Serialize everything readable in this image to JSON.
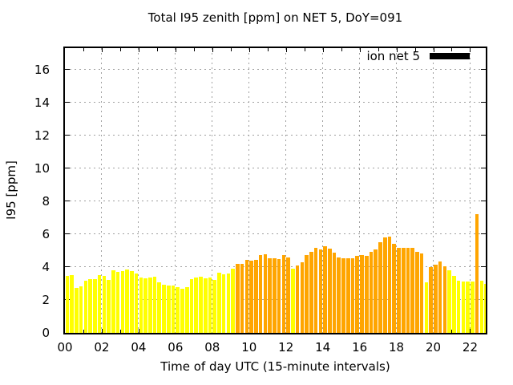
{
  "title": "Total I95 zenith [ppm] on NET 5, DoY=091",
  "legend": {
    "label": "ion net 5",
    "swatch_color": "#000000",
    "position": "top-right-inside"
  },
  "axes": {
    "x_label": "Time of day UTC (15-minute intervals)",
    "y_label": "I95 [ppm]",
    "x_tick_labels": [
      "00",
      "02",
      "04",
      "06",
      "08",
      "10",
      "12",
      "14",
      "16",
      "18",
      "20",
      "22"
    ],
    "x_tick_hours": [
      0,
      2,
      4,
      6,
      8,
      10,
      12,
      14,
      16,
      18,
      20,
      22
    ],
    "x_minor_tick_every_hours": 1,
    "y_tick_labels": [
      "0",
      "2",
      "4",
      "6",
      "8",
      "10",
      "12",
      "14",
      "16"
    ],
    "y_tick_values": [
      0,
      2,
      4,
      6,
      8,
      10,
      12,
      14,
      16
    ],
    "grid_style": "dashed"
  },
  "colors": {
    "yellow": "#ffff00",
    "orange": "#ffa500",
    "grid": "#a0a0a0",
    "frame": "#000000",
    "background": "#ffffff",
    "text": "#000000"
  },
  "chart_data": {
    "type": "bar",
    "title": "Total I95 zenith [ppm] on NET 5, DoY=091",
    "xlabel": "Time of day UTC (15-minute intervals)",
    "ylabel": "I95 [ppm]",
    "x_start_hour": 0,
    "interval_minutes": 15,
    "xlim_hours": [
      0,
      22.85
    ],
    "ylim": [
      0,
      17.3
    ],
    "grid": true,
    "legend_position": "top-right",
    "series": [
      {
        "name": "ion net 5",
        "values": [
          3.47,
          3.53,
          2.71,
          2.84,
          3.15,
          3.28,
          3.28,
          3.52,
          3.47,
          3.2,
          3.79,
          3.68,
          3.73,
          3.84,
          3.76,
          3.63,
          3.36,
          3.31,
          3.36,
          3.41,
          3.05,
          2.94,
          2.89,
          2.86,
          2.76,
          2.67,
          2.78,
          3.26,
          3.37,
          3.42,
          3.31,
          3.34,
          3.21,
          3.66,
          3.58,
          3.61,
          3.88,
          4.18,
          4.21,
          4.43,
          4.37,
          4.43,
          4.71,
          4.79,
          4.55,
          4.51,
          4.47,
          4.74,
          4.59,
          3.9,
          4.11,
          4.31,
          4.74,
          4.92,
          5.19,
          5.06,
          5.28,
          5.11,
          4.87,
          4.6,
          4.55,
          4.55,
          4.55,
          4.66,
          4.71,
          4.68,
          4.92,
          5.08,
          5.51,
          5.78,
          5.83,
          5.4,
          5.19,
          5.19,
          5.19,
          5.16,
          4.93,
          4.82,
          3.07,
          4.02,
          4.13,
          4.34,
          4.05,
          3.82,
          3.45,
          3.18,
          3.1,
          3.13,
          3.1,
          7.2,
          3.18,
          2.99
        ],
        "bar_colors": [
          "yellow",
          "yellow",
          "yellow",
          "yellow",
          "yellow",
          "yellow",
          "yellow",
          "yellow",
          "yellow",
          "yellow",
          "yellow",
          "yellow",
          "yellow",
          "yellow",
          "yellow",
          "yellow",
          "yellow",
          "yellow",
          "yellow",
          "yellow",
          "yellow",
          "yellow",
          "yellow",
          "yellow",
          "yellow",
          "yellow",
          "yellow",
          "yellow",
          "yellow",
          "yellow",
          "yellow",
          "yellow",
          "yellow",
          "yellow",
          "yellow",
          "yellow",
          "yellow",
          "orange",
          "orange",
          "orange",
          "orange",
          "orange",
          "orange",
          "orange",
          "orange",
          "orange",
          "orange",
          "orange",
          "orange",
          "yellow",
          "orange",
          "orange",
          "orange",
          "orange",
          "orange",
          "orange",
          "orange",
          "orange",
          "orange",
          "orange",
          "orange",
          "orange",
          "orange",
          "orange",
          "orange",
          "orange",
          "orange",
          "orange",
          "orange",
          "orange",
          "orange",
          "orange",
          "orange",
          "orange",
          "orange",
          "orange",
          "orange",
          "orange",
          "yellow",
          "orange",
          "orange",
          "orange",
          "orange",
          "yellow",
          "yellow",
          "yellow",
          "yellow",
          "yellow",
          "yellow",
          "orange",
          "yellow",
          "yellow"
        ]
      }
    ]
  }
}
